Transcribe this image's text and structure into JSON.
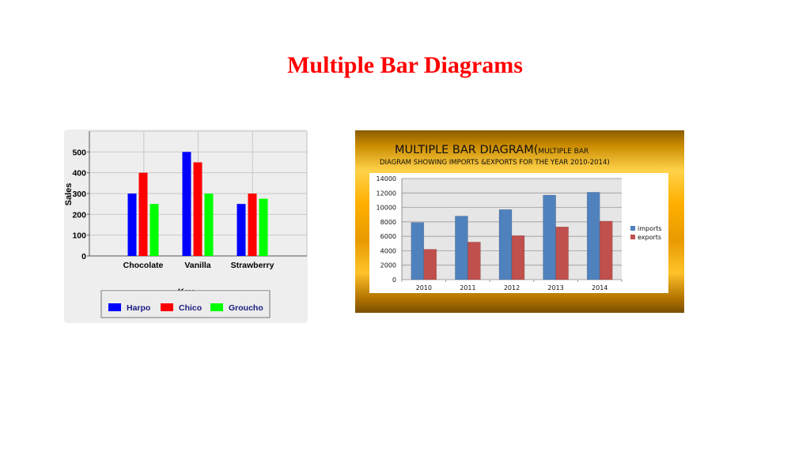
{
  "slide": {
    "title": "Multiple Bar Diagrams"
  },
  "chart_data": [
    {
      "type": "bar",
      "title": "",
      "xlabel": "",
      "ylabel": "Sales",
      "ylim": [
        0,
        600
      ],
      "yticks": [
        0,
        100,
        200,
        300,
        400,
        500
      ],
      "grid": true,
      "categories": [
        "Chocolate",
        "Vanilla",
        "Strawberry"
      ],
      "series": [
        {
          "name": "Harpo",
          "color": "#0000ff",
          "values": [
            300,
            500,
            250
          ]
        },
        {
          "name": "Chico",
          "color": "#ff0000",
          "values": [
            400,
            450,
            300
          ]
        },
        {
          "name": "Groucho",
          "color": "#00ff00",
          "values": [
            250,
            300,
            275
          ]
        }
      ],
      "legend": {
        "title": "Key",
        "placement": "bottom"
      }
    },
    {
      "type": "bar",
      "title": "MULTIPLE BAR DIAGRAM(",
      "title_small": "MULTIPLE BAR",
      "subtitle": "DIAGRAM SHOWING IMPORTS &EXPORTS FOR THE YEAR 2010-2014)",
      "xlabel": "",
      "ylabel": "",
      "ylim": [
        0,
        14000
      ],
      "yticks": [
        0,
        2000,
        4000,
        6000,
        8000,
        10000,
        12000,
        14000
      ],
      "grid": true,
      "categories": [
        "2010",
        "2011",
        "2012",
        "2013",
        "2014"
      ],
      "series": [
        {
          "name": "imports",
          "color": "#4f81bd",
          "values": [
            7900,
            8800,
            9700,
            11700,
            12100
          ]
        },
        {
          "name": "exports",
          "color": "#c0504d",
          "values": [
            4200,
            5200,
            6100,
            7300,
            8100
          ]
        }
      ],
      "legend": {
        "placement": "right"
      }
    }
  ]
}
